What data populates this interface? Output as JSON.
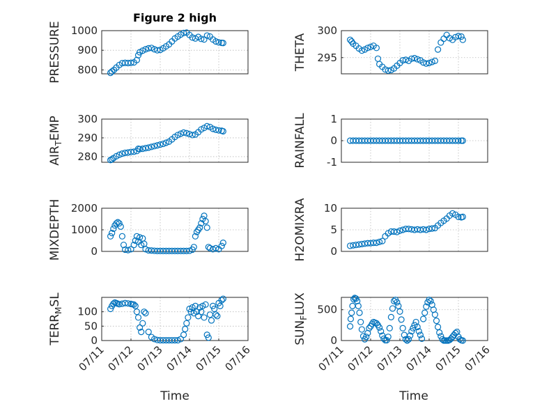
{
  "figure": {
    "title": "Figure 2 high",
    "xlabel": "Time",
    "x_ticks": [
      "07/11",
      "07/12",
      "07/13",
      "07/14",
      "07/15",
      "07/16"
    ],
    "marker_color": "#0072BD"
  },
  "chart_data": [
    {
      "type": "scatter",
      "title": "Figure 2 high",
      "ylabel": "PRESSURE",
      "xlabel": "",
      "xlim": [
        "07/11",
        "07/16"
      ],
      "ylim": [
        780,
        1000
      ],
      "y_ticks": [
        "800",
        "900",
        "1000"
      ],
      "grid": true,
      "series": [
        {
          "x": [
            11.3,
            11.35,
            11.42,
            11.5,
            11.6,
            11.7,
            11.8,
            11.9,
            12.0,
            12.1,
            12.2,
            12.25,
            12.3,
            12.4,
            12.5,
            12.6,
            12.7,
            12.8,
            12.9,
            13.0,
            13.1,
            13.2,
            13.3,
            13.4,
            13.5,
            13.6,
            13.7,
            13.8,
            13.9,
            14.0,
            14.1,
            14.2,
            14.3,
            14.4,
            14.5,
            14.6,
            14.7,
            14.8,
            14.9,
            15.0,
            15.1,
            15.15
          ],
          "y": [
            785,
            792,
            800,
            812,
            825,
            834,
            836,
            835,
            836,
            838,
            850,
            875,
            890,
            898,
            905,
            910,
            912,
            905,
            900,
            902,
            910,
            920,
            930,
            945,
            960,
            970,
            980,
            988,
            990,
            978,
            965,
            960,
            968,
            958,
            955,
            975,
            970,
            955,
            945,
            940,
            938,
            937
          ]
        }
      ]
    },
    {
      "type": "scatter",
      "ylabel": "THETA",
      "xlabel": "",
      "xlim": [
        "07/11",
        "07/16"
      ],
      "ylim": [
        292,
        300
      ],
      "y_ticks": [
        "295",
        "300"
      ],
      "grid": true,
      "series": [
        {
          "x": [
            11.3,
            11.35,
            11.4,
            11.5,
            11.6,
            11.7,
            11.8,
            11.9,
            12.0,
            12.1,
            12.2,
            12.25,
            12.3,
            12.4,
            12.5,
            12.6,
            12.7,
            12.8,
            12.9,
            13.0,
            13.1,
            13.2,
            13.3,
            13.4,
            13.5,
            13.6,
            13.7,
            13.8,
            13.9,
            14.0,
            14.1,
            14.2,
            14.3,
            14.4,
            14.5,
            14.6,
            14.7,
            14.8,
            14.9,
            15.0,
            15.1,
            15.15
          ],
          "y": [
            298.3,
            298.0,
            297.6,
            297.2,
            296.7,
            296.3,
            296.5,
            296.8,
            297.0,
            297.2,
            296.8,
            294.8,
            293.8,
            293.3,
            292.8,
            292.6,
            292.7,
            293.0,
            293.5,
            294.0,
            294.5,
            294.6,
            294.4,
            294.8,
            294.9,
            294.7,
            294.5,
            294.1,
            293.9,
            294.0,
            294.2,
            294.4,
            296.5,
            297.8,
            298.5,
            299.2,
            298.6,
            298.3,
            298.8,
            299.0,
            298.9,
            298.3
          ]
        }
      ]
    },
    {
      "type": "scatter",
      "ylabel": "AIR_TEMP",
      "xlabel": "",
      "xlim": [
        "07/11",
        "07/16"
      ],
      "ylim": [
        277,
        300
      ],
      "y_ticks": [
        "280",
        "290",
        "300"
      ],
      "grid": true,
      "series": [
        {
          "x": [
            11.3,
            11.35,
            11.4,
            11.5,
            11.6,
            11.7,
            11.8,
            11.9,
            12.0,
            12.1,
            12.2,
            12.25,
            12.3,
            12.4,
            12.5,
            12.6,
            12.7,
            12.8,
            12.9,
            13.0,
            13.1,
            13.2,
            13.3,
            13.4,
            13.5,
            13.6,
            13.7,
            13.8,
            13.9,
            14.0,
            14.1,
            14.2,
            14.3,
            14.4,
            14.5,
            14.6,
            14.7,
            14.8,
            14.9,
            15.0,
            15.1,
            15.15
          ],
          "y": [
            278.2,
            278.6,
            279.2,
            280.2,
            281.0,
            281.6,
            282.0,
            282.2,
            282.5,
            282.6,
            283.0,
            284.2,
            284.0,
            284.2,
            284.5,
            284.8,
            285.2,
            285.6,
            286.0,
            286.4,
            286.8,
            287.4,
            288.0,
            289.2,
            290.5,
            291.5,
            292.2,
            292.8,
            292.5,
            292.0,
            291.5,
            291.8,
            293.0,
            294.5,
            295.3,
            296.2,
            295.8,
            294.8,
            294.3,
            294.0,
            293.8,
            293.5
          ]
        }
      ]
    },
    {
      "type": "scatter",
      "ylabel": "RAINFALL",
      "xlabel": "",
      "xlim": [
        "07/11",
        "07/16"
      ],
      "ylim": [
        -1,
        1
      ],
      "y_ticks": [
        "-1",
        "0",
        "1"
      ],
      "grid": true,
      "series": [
        {
          "x": [
            11.3,
            11.4,
            11.5,
            11.6,
            11.7,
            11.8,
            11.9,
            12.0,
            12.1,
            12.2,
            12.3,
            12.4,
            12.5,
            12.6,
            12.7,
            12.8,
            12.9,
            13.0,
            13.1,
            13.2,
            13.3,
            13.4,
            13.5,
            13.6,
            13.7,
            13.8,
            13.9,
            14.0,
            14.1,
            14.2,
            14.3,
            14.4,
            14.5,
            14.6,
            14.7,
            14.8,
            14.9,
            15.0,
            15.1,
            15.15
          ],
          "y": [
            0,
            0,
            0,
            0,
            0,
            0,
            0,
            0,
            0,
            0,
            0,
            0,
            0,
            0,
            0,
            0,
            0,
            0,
            0,
            0,
            0,
            0,
            0,
            0,
            0,
            0,
            0,
            0,
            0,
            0,
            0,
            0,
            0,
            0,
            0,
            0,
            0,
            0,
            0,
            0
          ]
        }
      ]
    },
    {
      "type": "scatter",
      "ylabel": "MIXDEPTH",
      "xlabel": "",
      "xlim": [
        "07/11",
        "07/16"
      ],
      "ylim": [
        0,
        2000
      ],
      "y_ticks": [
        "0",
        "1000",
        "2000"
      ],
      "grid": true,
      "series": [
        {
          "x": [
            11.3,
            11.35,
            11.4,
            11.45,
            11.5,
            11.55,
            11.6,
            11.65,
            11.7,
            11.75,
            11.8,
            11.9,
            12.0,
            12.1,
            12.15,
            12.2,
            12.25,
            12.3,
            12.35,
            12.4,
            12.45,
            12.5,
            12.6,
            12.7,
            12.8,
            12.9,
            13.0,
            13.1,
            13.2,
            13.3,
            13.4,
            13.5,
            13.6,
            13.7,
            13.8,
            13.9,
            14.0,
            14.1,
            14.15,
            14.2,
            14.25,
            14.3,
            14.35,
            14.4,
            14.45,
            14.5,
            14.55,
            14.6,
            14.65,
            14.7,
            14.8,
            14.9,
            15.0,
            15.1,
            15.15
          ],
          "y": [
            700,
            850,
            1050,
            1200,
            1300,
            1350,
            1300,
            1150,
            700,
            300,
            80,
            60,
            100,
            300,
            500,
            700,
            450,
            650,
            300,
            600,
            350,
            100,
            50,
            40,
            30,
            20,
            20,
            20,
            20,
            20,
            20,
            20,
            20,
            20,
            20,
            20,
            30,
            80,
            200,
            700,
            900,
            1000,
            1100,
            1300,
            1500,
            1650,
            1400,
            1100,
            200,
            150,
            100,
            150,
            100,
            250,
            400
          ]
        }
      ]
    },
    {
      "type": "scatter",
      "ylabel": "H2OMIXRA",
      "xlabel": "",
      "xlim": [
        "07/11",
        "07/16"
      ],
      "ylim": [
        0,
        10
      ],
      "y_ticks": [
        "0",
        "5",
        "10"
      ],
      "grid": true,
      "series": [
        {
          "x": [
            11.3,
            11.4,
            11.5,
            11.6,
            11.7,
            11.8,
            11.9,
            12.0,
            12.1,
            12.2,
            12.3,
            12.4,
            12.5,
            12.6,
            12.7,
            12.8,
            12.9,
            13.0,
            13.1,
            13.2,
            13.3,
            13.4,
            13.5,
            13.6,
            13.7,
            13.8,
            13.9,
            14.0,
            14.1,
            14.2,
            14.3,
            14.4,
            14.5,
            14.6,
            14.7,
            14.8,
            14.9,
            15.0,
            15.1,
            15.15
          ],
          "y": [
            1.3,
            1.4,
            1.5,
            1.6,
            1.7,
            1.8,
            1.9,
            1.9,
            2.0,
            2.0,
            2.2,
            2.4,
            3.5,
            4.2,
            4.6,
            4.6,
            4.5,
            4.8,
            5.0,
            5.2,
            5.2,
            5.1,
            5.0,
            5.1,
            5.0,
            5.1,
            5.0,
            5.2,
            5.3,
            5.4,
            6.0,
            6.6,
            7.1,
            7.6,
            8.3,
            8.8,
            8.5,
            8.0,
            7.9,
            8.0
          ]
        }
      ]
    },
    {
      "type": "scatter",
      "ylabel": "TERR_MSL",
      "xlabel": "Time",
      "xlim": [
        "07/11",
        "07/16"
      ],
      "ylim": [
        0,
        150
      ],
      "y_ticks": [
        "0",
        "50",
        "100"
      ],
      "x_ticks": [
        "07/11",
        "07/12",
        "07/13",
        "07/14",
        "07/15",
        "07/16"
      ],
      "grid": true,
      "series": [
        {
          "x": [
            11.3,
            11.35,
            11.4,
            11.45,
            11.5,
            11.55,
            11.6,
            11.7,
            11.8,
            11.9,
            12.0,
            12.05,
            12.1,
            12.15,
            12.2,
            12.25,
            12.3,
            12.35,
            12.4,
            12.45,
            12.5,
            12.6,
            12.7,
            12.8,
            12.9,
            13.0,
            13.1,
            13.2,
            13.3,
            13.4,
            13.5,
            13.6,
            13.7,
            13.8,
            13.85,
            13.9,
            13.95,
            14.0,
            14.05,
            14.1,
            14.15,
            14.2,
            14.25,
            14.3,
            14.35,
            14.4,
            14.45,
            14.5,
            14.55,
            14.6,
            14.65,
            14.7,
            14.75,
            14.8,
            14.85,
            14.9,
            14.95,
            15.0,
            15.05,
            15.1,
            15.15
          ],
          "y": [
            110,
            120,
            128,
            132,
            130,
            128,
            126,
            128,
            130,
            129,
            127,
            126,
            125,
            120,
            100,
            80,
            45,
            30,
            60,
            100,
            95,
            30,
            12,
            5,
            2,
            1,
            1,
            1,
            1,
            1,
            1,
            1,
            5,
            20,
            40,
            60,
            80,
            110,
            100,
            115,
            95,
            120,
            100,
            85,
            115,
            100,
            120,
            80,
            125,
            20,
            10,
            90,
            70,
            120,
            110,
            90,
            85,
            130,
            120,
            140,
            145
          ]
        }
      ]
    },
    {
      "type": "scatter",
      "ylabel": "SUN_FLUX",
      "xlabel": "Time",
      "xlim": [
        "07/11",
        "07/16"
      ],
      "ylim": [
        0,
        700
      ],
      "y_ticks": [
        "0",
        "500"
      ],
      "x_ticks": [
        "07/11",
        "07/12",
        "07/13",
        "07/14",
        "07/15",
        "07/16"
      ],
      "grid": true,
      "series": [
        {
          "x": [
            11.3,
            11.32,
            11.35,
            11.38,
            11.42,
            11.46,
            11.5,
            11.54,
            11.58,
            11.62,
            11.66,
            11.7,
            11.75,
            11.8,
            11.85,
            11.9,
            11.95,
            12.0,
            12.05,
            12.1,
            12.15,
            12.2,
            12.25,
            12.3,
            12.35,
            12.4,
            12.45,
            12.5,
            12.55,
            12.6,
            12.65,
            12.7,
            12.75,
            12.8,
            12.85,
            12.9,
            12.95,
            13.0,
            13.05,
            13.1,
            13.15,
            13.2,
            13.25,
            13.3,
            13.35,
            13.4,
            13.45,
            13.5,
            13.55,
            13.6,
            13.65,
            13.7,
            13.75,
            13.8,
            13.85,
            13.9,
            13.95,
            14.0,
            14.05,
            14.1,
            14.15,
            14.2,
            14.25,
            14.3,
            14.35,
            14.4,
            14.45,
            14.5,
            14.55,
            14.6,
            14.65,
            14.7,
            14.75,
            14.8,
            14.85,
            14.9,
            14.95,
            15.0,
            15.05,
            15.1,
            15.15
          ],
          "y": [
            230,
            350,
            450,
            560,
            670,
            690,
            680,
            640,
            560,
            450,
            300,
            180,
            70,
            20,
            60,
            120,
            200,
            230,
            270,
            300,
            290,
            280,
            250,
            210,
            150,
            80,
            30,
            5,
            5,
            60,
            200,
            380,
            520,
            640,
            660,
            620,
            560,
            470,
            340,
            200,
            90,
            20,
            0,
            20,
            80,
            150,
            200,
            250,
            300,
            220,
            150,
            90,
            30,
            350,
            450,
            550,
            620,
            660,
            640,
            580,
            500,
            420,
            320,
            220,
            130,
            70,
            20,
            0,
            0,
            0,
            0,
            10,
            30,
            60,
            90,
            120,
            140,
            60,
            20,
            5,
            0
          ]
        }
      ]
    }
  ]
}
